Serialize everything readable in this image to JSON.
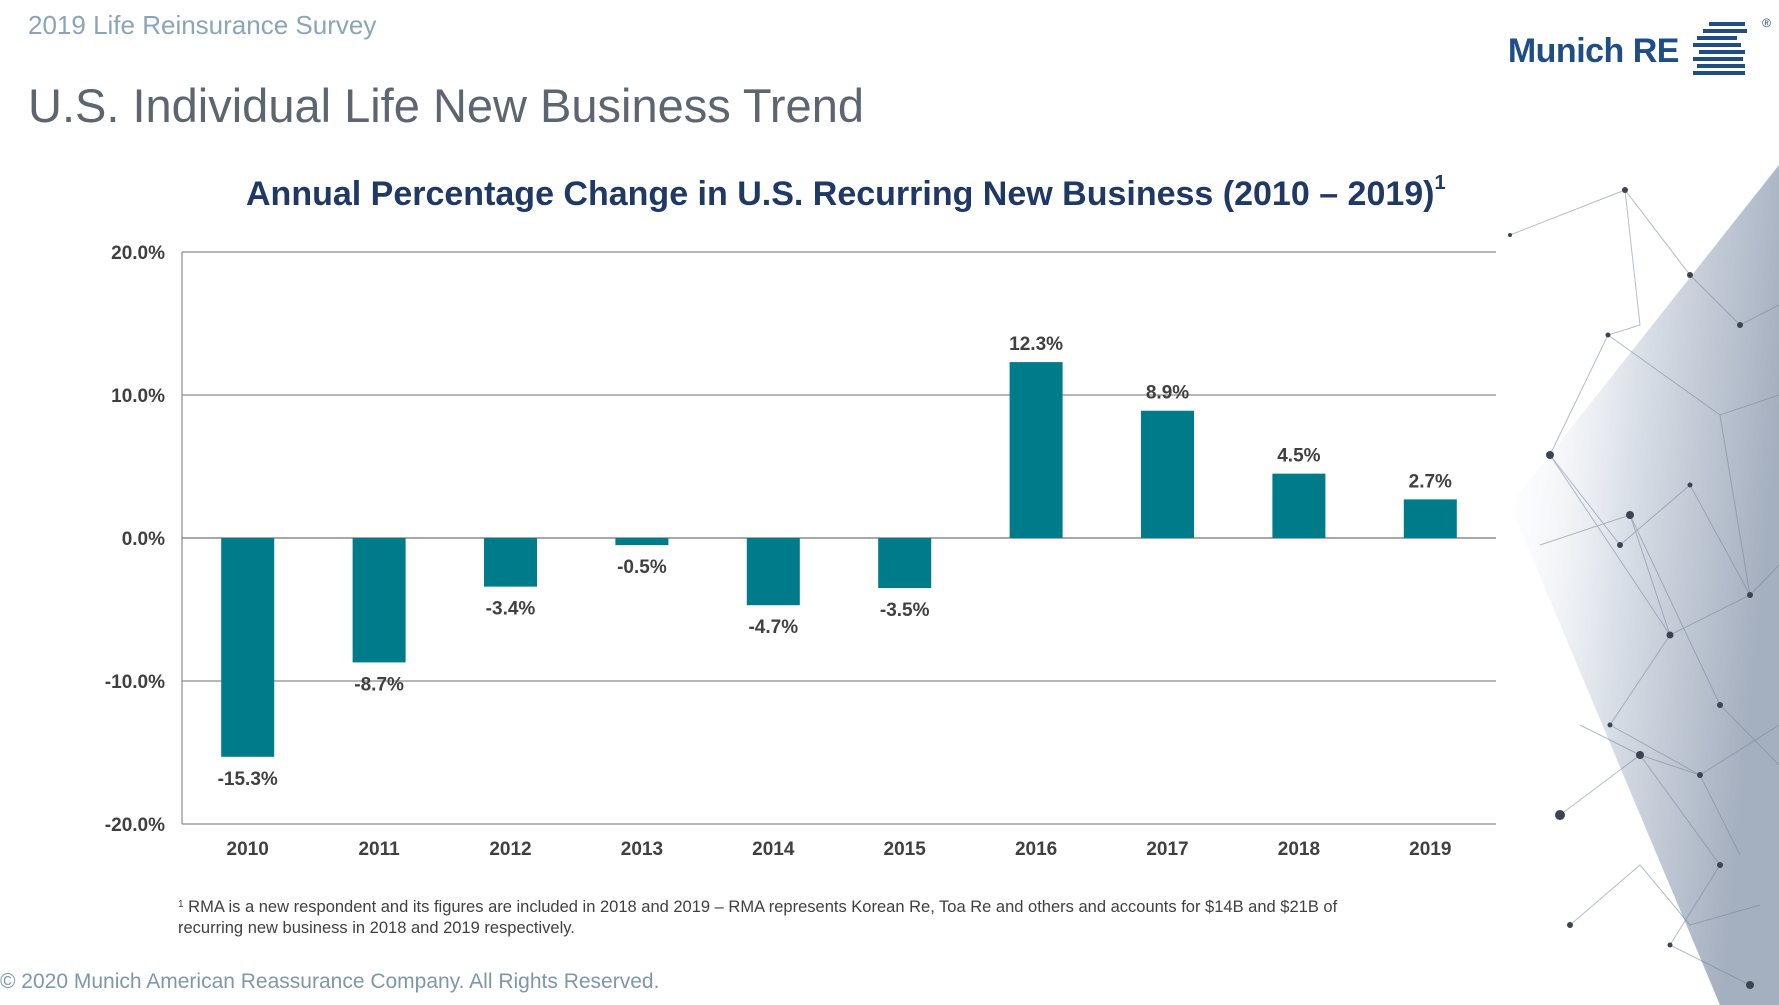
{
  "header": {
    "survey_label": "2019 Life Reinsurance Survey",
    "page_title": "U.S. Individual Life New Business Trend",
    "logo_text": "Munich RE",
    "logo_registered": "®"
  },
  "chart_data": {
    "type": "bar",
    "title": "Annual Percentage Change in U.S. Recurring New Business (2010 – 2019)",
    "title_footnote_marker": "1",
    "xlabel": "",
    "ylabel": "",
    "categories": [
      "2010",
      "2011",
      "2012",
      "2013",
      "2014",
      "2015",
      "2016",
      "2017",
      "2018",
      "2019"
    ],
    "values": [
      -15.3,
      -8.7,
      -3.4,
      -0.5,
      -4.7,
      -3.5,
      12.3,
      8.9,
      4.5,
      2.7
    ],
    "data_labels": [
      "-15.3%",
      "-8.7%",
      "-3.4%",
      "-0.5%",
      "-4.7%",
      "-3.5%",
      "12.3%",
      "8.9%",
      "4.5%",
      "2.7%"
    ],
    "ylim": [
      -20,
      20
    ],
    "yticks": [
      20,
      10,
      0,
      -10,
      -20
    ],
    "ytick_labels": [
      "20.0%",
      "10.0%",
      "0.0%",
      "-10.0%",
      "-20.0%"
    ],
    "grid": true,
    "legend": "none",
    "bar_color": "#007b8a"
  },
  "footnote": {
    "marker": "1",
    "text": "RMA is a new respondent and its figures are included in 2018 and 2019 – RMA represents Korean Re, Toa Re and others and accounts for $14B and $21B of recurring new business in 2018 and 2019 respectively."
  },
  "footer": {
    "copyright": "© 2020 Munich American Reassurance Company. All Rights Reserved."
  },
  "colors": {
    "brand_blue": "#1f4e86",
    "title_navy": "#1f3864",
    "bar_teal": "#007b8a",
    "gray_text": "#5d6670",
    "light_label": "#8aa5b8"
  },
  "icons": {
    "logo_mark": "munich-re-stripes-logo-icon",
    "background_decor": "network-mesh-decoration"
  }
}
